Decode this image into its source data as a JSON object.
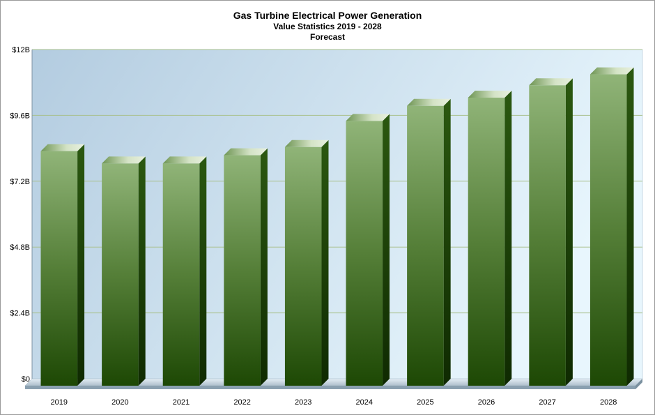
{
  "chart_data": {
    "type": "bar",
    "title": "Gas Turbine Electrical Power Generation",
    "subtitle": "Value Statistics 2019 - 2028",
    "subtitle2": "Forecast",
    "categories": [
      "2019",
      "2020",
      "2021",
      "2022",
      "2023",
      "2024",
      "2025",
      "2026",
      "2027",
      "2028"
    ],
    "values": [
      8.55,
      8.1,
      8.1,
      8.4,
      8.7,
      9.65,
      10.2,
      10.5,
      10.95,
      11.35
    ],
    "unit": "USD billions",
    "ylim": [
      0,
      12
    ],
    "yticks": [
      0,
      2.4,
      4.8,
      7.2,
      9.6,
      12
    ],
    "ytick_labels": [
      "$0",
      "$2.4B",
      "$4.8B",
      "$7.2B",
      "$9.6B",
      "$12B"
    ],
    "grid": true,
    "legend": "none",
    "colors": {
      "bar_top": "#8fb377",
      "bar_bottom": "#1f4a05",
      "bar_side": "#1a3d04",
      "bar_cap": "#c3d8b2",
      "plot_bg_left": "#b7cfe0",
      "plot_bg_right": "#e6f5fc",
      "grid": "#a9c08c"
    }
  }
}
